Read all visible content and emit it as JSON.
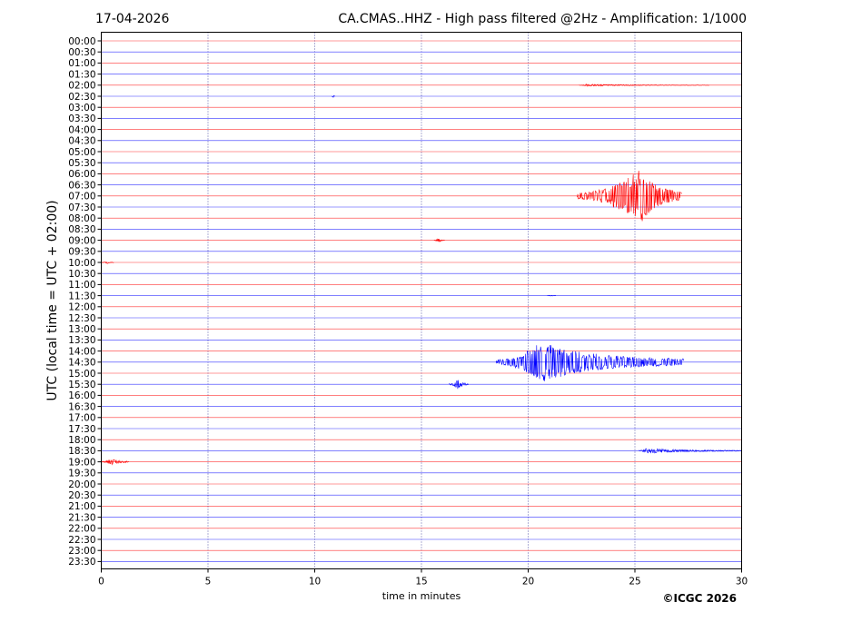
{
  "header": {
    "date": "17-04-2026",
    "title": "CA.CMAS..HHZ - High pass filtered @2Hz - Amplification: 1/1000"
  },
  "footer": {
    "copyright": "©ICGC 2026"
  },
  "chart_data": {
    "type": "line",
    "xlabel": "time in minutes",
    "ylabel": "UTC (local time = UTC + 02:00)",
    "xlim": [
      0,
      30
    ],
    "x_ticks": [
      0,
      5,
      10,
      15,
      20,
      25,
      30
    ],
    "x_tick_labels": [
      "0",
      "5",
      "10",
      "15",
      "20",
      "25",
      "30"
    ],
    "vertical_grid_minutes": [
      5,
      10,
      15,
      20,
      25
    ],
    "y_tick_labels": [
      "00:00",
      "00:30",
      "01:00",
      "01:30",
      "02:00",
      "02:30",
      "03:00",
      "03:30",
      "04:00",
      "04:30",
      "05:00",
      "05:30",
      "06:00",
      "06:30",
      "07:00",
      "07:30",
      "08:00",
      "08:30",
      "09:00",
      "09:30",
      "10:00",
      "10:30",
      "11:00",
      "11:30",
      "12:00",
      "12:30",
      "13:00",
      "13:30",
      "14:00",
      "14:30",
      "15:00",
      "15:30",
      "16:00",
      "16:30",
      "17:00",
      "17:30",
      "18:00",
      "18:30",
      "19:00",
      "19:30",
      "20:00",
      "20:30",
      "21:00",
      "21:30",
      "22:00",
      "22:30",
      "23:00",
      "23:30"
    ],
    "trace_colors": [
      "#ff0000",
      "#0000ff"
    ],
    "grid": true,
    "events": [
      {
        "row": "07:00",
        "start_min": 22.3,
        "end_min": 27.2,
        "peak_min": 25.3,
        "peak_amp": 1.0,
        "color": "#ff0000"
      },
      {
        "row": "14:30",
        "start_min": 18.5,
        "end_min": 27.3,
        "peak_min": 20.6,
        "peak_amp": 0.75,
        "color": "#0000ff"
      },
      {
        "row": "15:30",
        "start_min": 16.3,
        "end_min": 17.2,
        "peak_min": 16.7,
        "peak_amp": 0.18,
        "color": "#0000ff"
      },
      {
        "row": "09:00",
        "start_min": 15.6,
        "end_min": 16.1,
        "peak_min": 15.8,
        "peak_amp": 0.08,
        "color": "#ff0000"
      },
      {
        "row": "19:00",
        "start_min": 0.0,
        "end_min": 1.3,
        "peak_min": 0.5,
        "peak_amp": 0.13,
        "color": "#ff0000"
      },
      {
        "row": "18:30",
        "start_min": 25.2,
        "end_min": 30.0,
        "peak_min": 25.5,
        "peak_amp": 0.1,
        "color": "#0000ff"
      },
      {
        "row": "10:00",
        "start_min": 0.0,
        "end_min": 0.6,
        "peak_min": 0.3,
        "peak_amp": 0.04,
        "color": "#ff0000"
      },
      {
        "row": "02:00",
        "start_min": 22.4,
        "end_min": 28.5,
        "peak_min": 22.7,
        "peak_amp": 0.04,
        "color": "#ff0000"
      },
      {
        "row": "02:30",
        "start_min": 10.8,
        "end_min": 10.95,
        "peak_min": 10.87,
        "peak_amp": 0.06,
        "color": "#0000ff"
      },
      {
        "row": "11:30",
        "start_min": 20.9,
        "end_min": 21.3,
        "peak_min": 21.1,
        "peak_amp": 0.02,
        "color": "#0000ff"
      }
    ]
  }
}
